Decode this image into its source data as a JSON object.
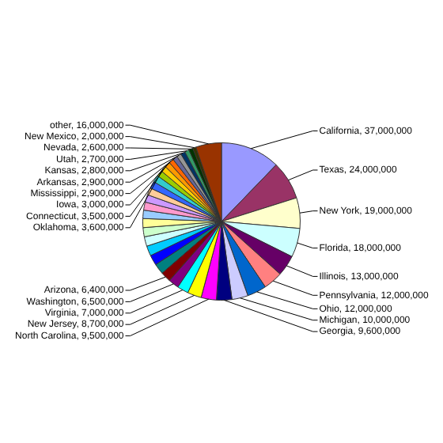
{
  "chart_data": {
    "type": "pie",
    "legend": false,
    "categories": [
      "California, 37,000,000",
      "Texas, 24,000,000",
      "New York, 19,000,000",
      "Florida, 18,000,000",
      "Illinois, 13,000,000",
      "Pennsylvania, 12,000,000",
      "Ohio, 12,000,000",
      "Michigan, 10,000,000",
      "Georgia, 9,600,000",
      "North Carolina, 9,500,000",
      "New Jersey, 8,700,000",
      "Virginia, 7,000,000",
      "Washington, 6,500,000",
      "Arizona, 6,400,000",
      null,
      null,
      null,
      null,
      null,
      null,
      null,
      null,
      null,
      null,
      null,
      null,
      null,
      "Oklahoma, 3,600,000",
      "Connecticut, 3,500,000",
      "Iowa, 3,000,000",
      "Mississippi, 2,900,000",
      "Arkansas, 2,900,000",
      "Kansas, 2,800,000",
      "Utah, 2,700,000",
      "Nevada, 2,600,000",
      "New Mexico, 2,000,000",
      "other, 16,000,000"
    ],
    "values": [
      37000000,
      24000000,
      19000000,
      18000000,
      13000000,
      12000000,
      12000000,
      10000000,
      9600000,
      9500000,
      8700000,
      7000000,
      6500000,
      6400000,
      6500000,
      6400000,
      6200000,
      5900000,
      5700000,
      5600000,
      5200000,
      5000000,
      4700000,
      4500000,
      4400000,
      4300000,
      3800000,
      3600000,
      3500000,
      3000000,
      2900000,
      2900000,
      2800000,
      2700000,
      2600000,
      2000000,
      16000000
    ],
    "colors": [
      "#9999ff",
      "#993366",
      "#ffffcc",
      "#ccffff",
      "#660066",
      "#ff8080",
      "#0066cc",
      "#ccccff",
      "#000080",
      "#ff00ff",
      "#ffff00",
      "#00ffff",
      "#800080",
      "#800000",
      "#008080",
      "#0000ff",
      "#00ccff",
      "#ccffff",
      "#ccffcc",
      "#ffff99",
      "#99ccff",
      "#ff99cc",
      "#cc99ff",
      "#ffcc99",
      "#3366ff",
      "#33cccc",
      "#99cc00",
      "#ffcc00",
      "#ff9900",
      "#ff6600",
      "#666699",
      "#969696",
      "#003366",
      "#339966",
      "#003300",
      "#333300",
      "#993300"
    ]
  }
}
